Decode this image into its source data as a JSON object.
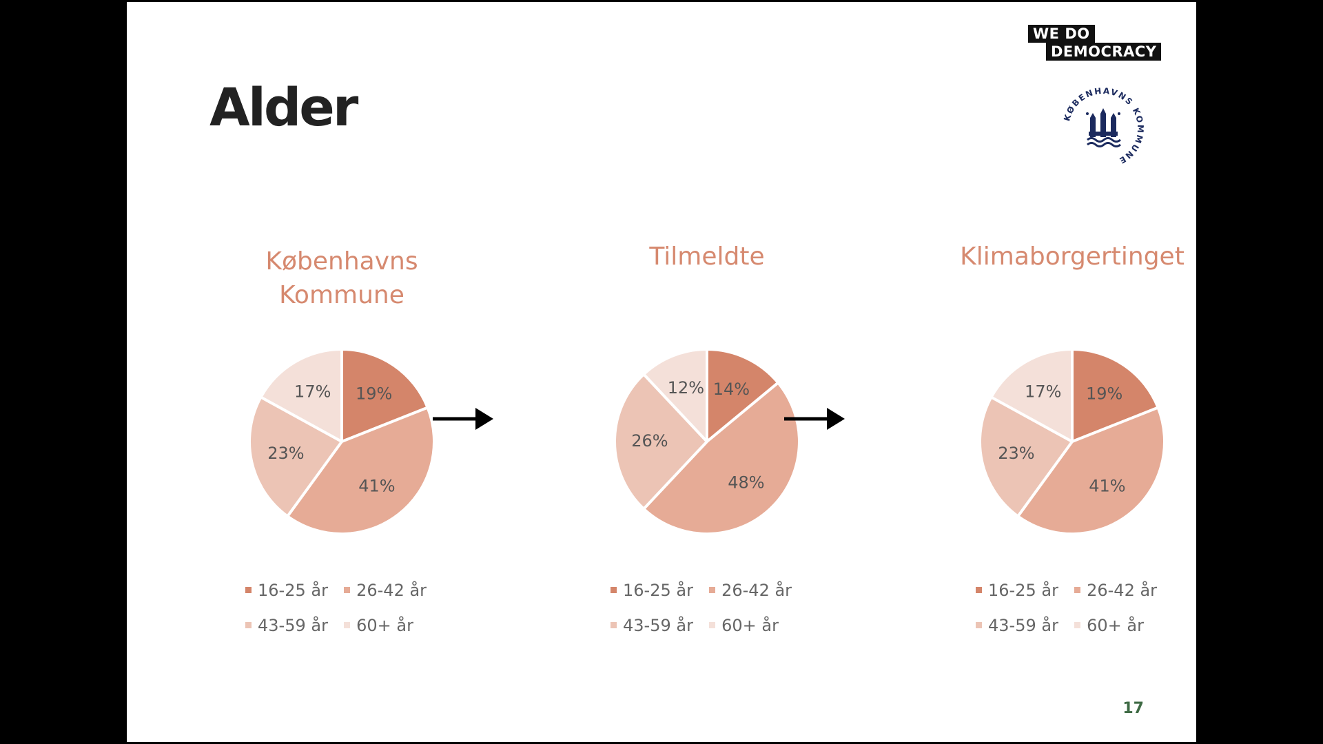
{
  "slide": {
    "title": "Alder",
    "page_number": "17",
    "logo_wedo": {
      "line1": "WE DO",
      "line2": "DEMOCRACY"
    },
    "logo_kk": {
      "text": "KØBENHAVNS KOMMUNE"
    }
  },
  "colors": {
    "accent_title": "#d6896f",
    "series": [
      "#d4856a",
      "#e6ab96",
      "#ecc4b5",
      "#f4e0d9"
    ],
    "page_number": "#3f6b45"
  },
  "chart_data": [
    {
      "type": "pie",
      "title": "Københavns Kommune",
      "categories": [
        "16-25 år",
        "26-42 år",
        "43-59 år",
        "60+ år"
      ],
      "values": [
        19,
        41,
        23,
        17
      ],
      "value_labels": [
        "19%",
        "41%",
        "23%",
        "17%"
      ],
      "legend_placement": "bottom"
    },
    {
      "type": "pie",
      "title": "Tilmeldte",
      "categories": [
        "16-25 år",
        "26-42 år",
        "43-59 år",
        "60+ år"
      ],
      "values": [
        14,
        48,
        26,
        12
      ],
      "value_labels": [
        "14%",
        "48%",
        "26%",
        "12%"
      ],
      "legend_placement": "bottom"
    },
    {
      "type": "pie",
      "title": "Klimaborgertinget",
      "categories": [
        "16-25 år",
        "26-42 år",
        "43-59 år",
        "60+ år"
      ],
      "values": [
        19,
        41,
        23,
        17
      ],
      "value_labels": [
        "19%",
        "41%",
        "23%",
        "17%"
      ],
      "legend_placement": "bottom"
    }
  ],
  "arrows": [
    "right-arrow-icon",
    "right-arrow-icon"
  ]
}
